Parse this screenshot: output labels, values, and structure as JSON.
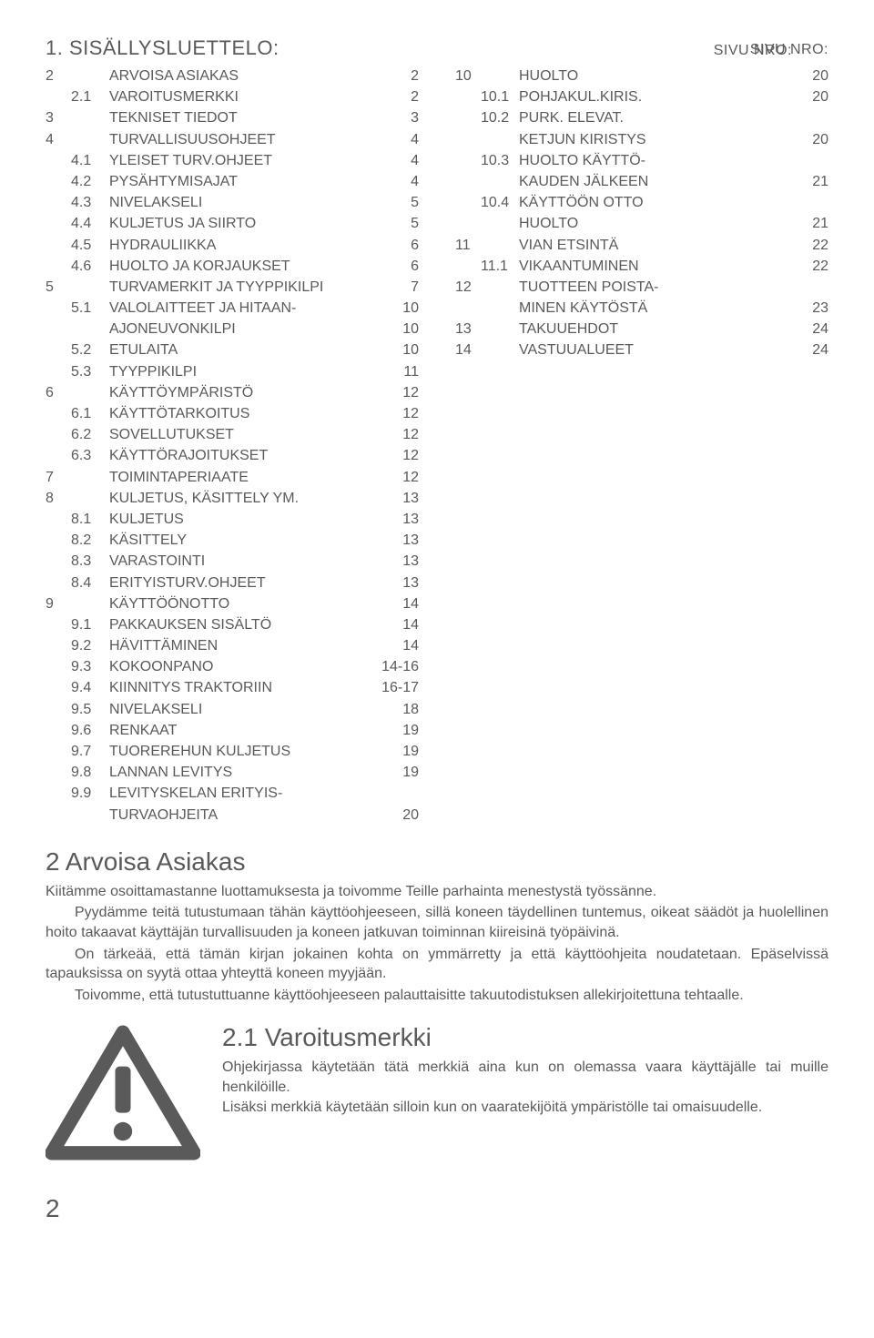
{
  "colors": {
    "text": "#5a5a5a",
    "bg": "#ffffff",
    "icon_stroke": "#5a5a5a"
  },
  "typography": {
    "body_size_pt": 12,
    "heading_size_pt": 21,
    "title_size_pt": 16
  },
  "header": {
    "title": "1. SISÄLLYSLUETTELO:",
    "left_col_label": "SIVU NRO:",
    "right_col_label": "SIVU NRO:"
  },
  "toc_left": [
    {
      "outer": "2",
      "inner": "",
      "text": "ARVOISA ASIAKAS",
      "page": "2"
    },
    {
      "outer": "",
      "inner": "2.1",
      "text": "VAROITUSMERKKI",
      "page": "2"
    },
    {
      "outer": "3",
      "inner": "",
      "text": "TEKNISET TIEDOT",
      "page": "3"
    },
    {
      "outer": "4",
      "inner": "",
      "text": "TURVALLISUUSOHJEET",
      "page": "4"
    },
    {
      "outer": "",
      "inner": "4.1",
      "text": "YLEISET TURV.OHJEET",
      "page": "4"
    },
    {
      "outer": "",
      "inner": "4.2",
      "text": "PYSÄHTYMISAJAT",
      "page": "4"
    },
    {
      "outer": "",
      "inner": "4.3",
      "text": "NIVELAKSELI",
      "page": "5"
    },
    {
      "outer": "",
      "inner": "4.4",
      "text": "KULJETUS JA SIIRTO",
      "page": "5"
    },
    {
      "outer": "",
      "inner": "4.5",
      "text": "HYDRAULIIKKA",
      "page": "6"
    },
    {
      "outer": "",
      "inner": "4.6",
      "text": "HUOLTO JA KORJAUKSET",
      "page": "6"
    },
    {
      "outer": "5",
      "inner": "",
      "text": "TURVAMERKIT JA TYYPPIKILPI",
      "page": "7"
    },
    {
      "outer": "",
      "inner": "5.1",
      "text": "VALOLAITTEET JA HITAAN-",
      "page": "10"
    },
    {
      "outer": "",
      "inner": "",
      "text": "AJONEUVONKILPI",
      "page": "10"
    },
    {
      "outer": "",
      "inner": "5.2",
      "text": "ETULAITA",
      "page": "10"
    },
    {
      "outer": "",
      "inner": "5.3",
      "text": "TYYPPIKILPI",
      "page": "11"
    },
    {
      "outer": "6",
      "inner": "",
      "text": "KÄYTTÖYMPÄRISTÖ",
      "page": "12"
    },
    {
      "outer": "",
      "inner": "6.1",
      "text": "KÄYTTÖTARKOITUS",
      "page": "12"
    },
    {
      "outer": "",
      "inner": "6.2",
      "text": "SOVELLUTUKSET",
      "page": "12"
    },
    {
      "outer": "",
      "inner": "6.3",
      "text": "KÄYTTÖRAJOITUKSET",
      "page": "12"
    },
    {
      "outer": "7",
      "inner": "",
      "text": "TOIMINTAPERIAATE",
      "page": "12"
    },
    {
      "outer": "8",
      "inner": "",
      "text": "KULJETUS, KÄSITTELY YM.",
      "page": "13"
    },
    {
      "outer": "",
      "inner": "8.1",
      "text": "KULJETUS",
      "page": "13"
    },
    {
      "outer": "",
      "inner": "8.2",
      "text": "KÄSITTELY",
      "page": "13"
    },
    {
      "outer": "",
      "inner": "8.3",
      "text": "VARASTOINTI",
      "page": "13"
    },
    {
      "outer": "",
      "inner": "8.4",
      "text": "ERITYISTURV.OHJEET",
      "page": "13"
    },
    {
      "outer": "9",
      "inner": "",
      "text": "KÄYTTÖÖNOTTO",
      "page": "14"
    },
    {
      "outer": "",
      "inner": "9.1",
      "text": "PAKKAUKSEN SISÄLTÖ",
      "page": "14"
    },
    {
      "outer": "",
      "inner": "9.2",
      "text": "HÄVITTÄMINEN",
      "page": "14"
    },
    {
      "outer": "",
      "inner": "9.3",
      "text": "KOKOONPANO",
      "page": "14-16"
    },
    {
      "outer": "",
      "inner": "9.4",
      "text": "KIINNITYS TRAKTORIIN",
      "page": "16-17"
    },
    {
      "outer": "",
      "inner": "9.5",
      "text": "NIVELAKSELI",
      "page": "18"
    },
    {
      "outer": "",
      "inner": "9.6",
      "text": "RENKAAT",
      "page": "19"
    },
    {
      "outer": "",
      "inner": "9.7",
      "text": "TUOREREHUN KULJETUS",
      "page": "19"
    },
    {
      "outer": "",
      "inner": "9.8",
      "text": "LANNAN LEVITYS",
      "page": "19"
    },
    {
      "outer": "",
      "inner": "9.9",
      "text": "LEVITYSKELAN ERITYIS-",
      "page": ""
    },
    {
      "outer": "",
      "inner": "",
      "text": "TURVAOHJEITA",
      "page": "20"
    }
  ],
  "toc_right": [
    {
      "outer": "10",
      "inner": "",
      "text": "HUOLTO",
      "page": "20"
    },
    {
      "outer": "",
      "inner": "10.1",
      "text": "POHJAKUL.KIRIS.",
      "page": "20"
    },
    {
      "outer": "",
      "inner": "10.2",
      "text": "PURK. ELEVAT.",
      "page": ""
    },
    {
      "outer": "",
      "inner": "",
      "text": "KETJUN KIRISTYS",
      "page": "20"
    },
    {
      "outer": "",
      "inner": "10.3",
      "text": "HUOLTO KÄYTTÖ-",
      "page": ""
    },
    {
      "outer": "",
      "inner": "",
      "text": "KAUDEN JÄLKEEN",
      "page": "21"
    },
    {
      "outer": "",
      "inner": "10.4",
      "text": "KÄYTTÖÖN OTTO",
      "page": ""
    },
    {
      "outer": "",
      "inner": "",
      "text": "HUOLTO",
      "page": "21"
    },
    {
      "outer": "11",
      "inner": "",
      "text": "VIAN ETSINTÄ",
      "page": "22"
    },
    {
      "outer": "",
      "inner": "11.1",
      "text": "VIKAANTUMINEN",
      "page": "22"
    },
    {
      "outer": "12",
      "inner": "",
      "text": "TUOTTEEN POISTA-",
      "page": ""
    },
    {
      "outer": "",
      "inner": "",
      "text": "MINEN KÄYTÖSTÄ",
      "page": "23"
    },
    {
      "outer": "13",
      "inner": "",
      "text": "TAKUUEHDOT",
      "page": "24"
    },
    {
      "outer": "14",
      "inner": "",
      "text": "VASTUUALUEET",
      "page": "24"
    }
  ],
  "section2": {
    "heading": "2 Arvoisa Asiakas",
    "paragraphs": [
      {
        "indent": false,
        "text": "Kiitämme osoittamastanne luottamuksesta ja toivomme Teille parhainta menestystä työssänne."
      },
      {
        "indent": true,
        "text": "Pyydämme teitä tutustumaan tähän käyttöohjeeseen, sillä koneen täydellinen tuntemus, oikeat säädöt ja huolellinen hoito takaavat käyttäjän turvallisuuden ja koneen jatkuvan toiminnan kiireisinä työpäivinä."
      },
      {
        "indent": true,
        "text": "On tärkeää, että tämän kirjan jokainen kohta on ymmärretty ja että käyttöohjeita noudatetaan. Epäselvissä tapauksissa on syytä ottaa yhteyttä koneen myyjään."
      },
      {
        "indent": true,
        "text": "Toivomme, että tutustuttuanne käyttöohjeeseen palauttaisitte takuutodistuksen allekirjoitettuna tehtaalle."
      }
    ]
  },
  "section21": {
    "heading": "2.1 Varoitusmerkki",
    "paragraphs": [
      "Ohjekirjassa käytetään tätä merkkiä aina kun on olemassa vaara käyttäjälle tai muille henkilöille.",
      "Lisäksi merkkiä käytetään silloin kun on vaaratekijöitä ympäristölle tai omaisuudelle."
    ]
  },
  "page_number": "2"
}
